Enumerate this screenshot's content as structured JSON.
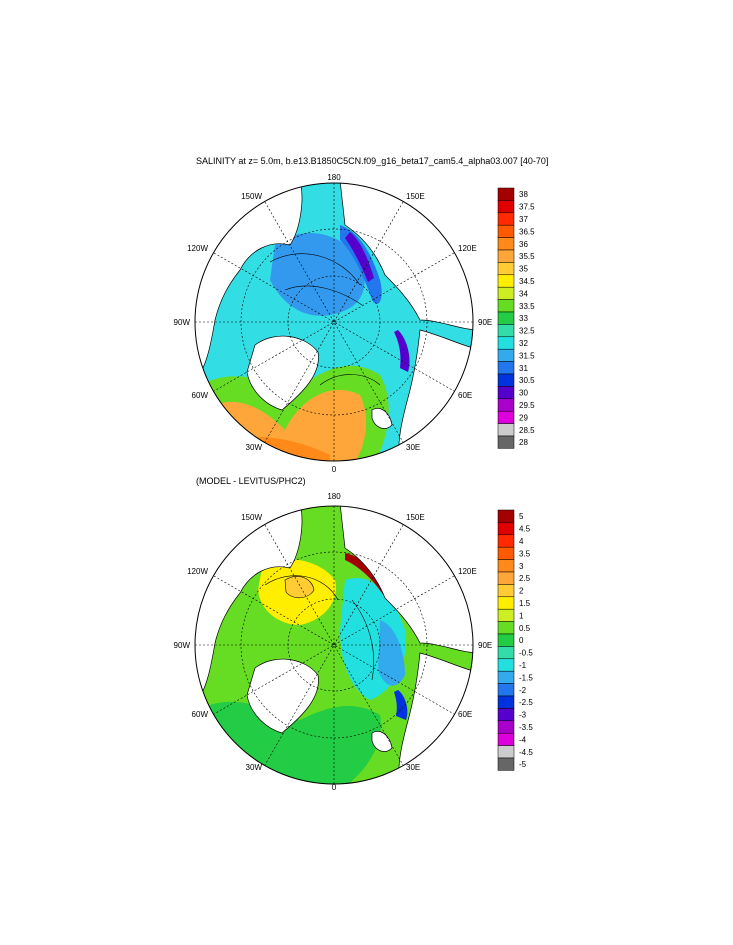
{
  "panels": [
    {
      "title": "SALINITY at z=   5.0m, b.e13.B1850C5CN.f09_g16_beta17_cam5.4_alpha03.007 [40-70]",
      "lon_labels": {
        "top": "180",
        "bottom": "0",
        "left": "90W",
        "right": "90E",
        "ul1": "150W",
        "ul2": "120W",
        "ur1": "150E",
        "ur2": "120E",
        "ll1": "60W",
        "ll2": "30W",
        "lr1": "60E",
        "lr2": "30E"
      },
      "colorbar": {
        "labels": [
          "38",
          "37.5",
          "37",
          "36.5",
          "36",
          "35.5",
          "35",
          "34.5",
          "34",
          "33.5",
          "33",
          "32.5",
          "32",
          "31.5",
          "31",
          "30.5",
          "30",
          "29.5",
          "29",
          "28.5",
          "28"
        ],
        "colors": [
          "#a50000",
          "#e00000",
          "#ff2a00",
          "#ff5a00",
          "#ff8a1a",
          "#ffa63a",
          "#ffcc33",
          "#ffee00",
          "#ccee22",
          "#66dd22",
          "#22cc44",
          "#33ddaa",
          "#22e0e0",
          "#33aaee",
          "#2277ee",
          "#0033dd",
          "#5500cc",
          "#aa00cc",
          "#dd00dd",
          "#cccccc",
          "#666666"
        ]
      },
      "fills": {
        "ocean": "#33dde4",
        "pacific": "#3399ee",
        "atlantic": "#66dd22",
        "warm": "#ffa63a",
        "fresh": "#2277ee",
        "veryfresh": "#5500cc"
      }
    },
    {
      "title": "(MODEL - LEVITUS/PHC2)",
      "lon_labels": {
        "top": "180",
        "bottom": "0",
        "left": "90W",
        "right": "90E",
        "ul1": "150W",
        "ul2": "120W",
        "ur1": "150E",
        "ur2": "120E",
        "ll1": "60W",
        "ll2": "30W",
        "lr1": "60E",
        "lr2": "30E"
      },
      "colorbar": {
        "labels": [
          "5",
          "4.5",
          "4",
          "3.5",
          "3",
          "2.5",
          "2",
          "1.5",
          "1",
          "0.5",
          "0",
          "-0.5",
          "-1",
          "-1.5",
          "-2",
          "-2.5",
          "-3",
          "-3.5",
          "-4",
          "-4.5",
          "-5"
        ],
        "colors": [
          "#a50000",
          "#e00000",
          "#ff2a00",
          "#ff5a00",
          "#ff8a1a",
          "#ffa63a",
          "#ffcc33",
          "#ffee00",
          "#ccee22",
          "#66dd22",
          "#22cc44",
          "#33ddaa",
          "#22e0e0",
          "#33aaee",
          "#2277ee",
          "#0033dd",
          "#5500cc",
          "#aa00cc",
          "#dd00dd",
          "#cccccc",
          "#666666"
        ]
      },
      "fills": {
        "ocean": "#66dd22",
        "pacific": "#22e0e0",
        "atlantic": "#22cc44",
        "warm": "#ffee00",
        "fresh": "#33aaee",
        "veryfresh": "#a50000"
      }
    }
  ]
}
